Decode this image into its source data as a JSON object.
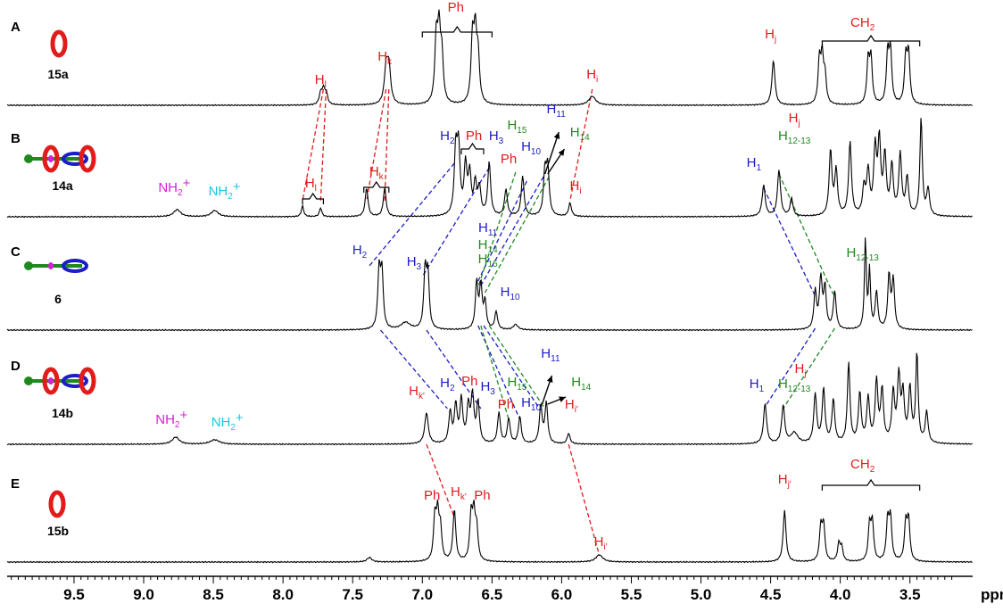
{
  "chart_data": {
    "type": "line",
    "xlabel": "ppm",
    "xlim": [
      9.98,
      3.05
    ],
    "x_reversed": true,
    "x_ticks": [
      "9.5",
      "9.0",
      "8.5",
      "8.0",
      "7.5",
      "7.0",
      "6.5",
      "6.0",
      "5.5",
      "5.0",
      "4.5",
      "4.0",
      "3.5"
    ],
    "palette": {
      "red": "#e21b1b",
      "blue": "#1c1cc8",
      "green": "#1e8a1e",
      "magenta": "#d420d4",
      "cyan": "#19c8e6",
      "black": "#000000"
    },
    "panels": [
      {
        "letter": "A",
        "compound": "15a",
        "peaks": [
          [
            7.73,
            0.12,
            0.012
          ],
          [
            7.71,
            0.16,
            0.012
          ],
          [
            7.69,
            0.12,
            0.012
          ],
          [
            7.26,
            0.38,
            0.015
          ],
          [
            7.24,
            0.4,
            0.015
          ],
          [
            6.9,
            0.7,
            0.012
          ],
          [
            6.88,
            0.75,
            0.012
          ],
          [
            6.86,
            0.5,
            0.012
          ],
          [
            6.64,
            0.7,
            0.012
          ],
          [
            6.62,
            0.72,
            0.012
          ],
          [
            6.6,
            0.5,
            0.012
          ],
          [
            5.78,
            0.1,
            0.03
          ],
          [
            4.48,
            0.5,
            0.013
          ],
          [
            4.15,
            0.48,
            0.011
          ],
          [
            4.13,
            0.5,
            0.011
          ],
          [
            4.11,
            0.3,
            0.011
          ],
          [
            3.8,
            0.48,
            0.011
          ],
          [
            3.78,
            0.5,
            0.011
          ],
          [
            3.66,
            0.55,
            0.011
          ],
          [
            3.64,
            0.58,
            0.011
          ],
          [
            3.53,
            0.52,
            0.011
          ],
          [
            3.51,
            0.55,
            0.011
          ]
        ],
        "labels": [
          {
            "text": "H",
            "sub": "l",
            "ppm": 7.73,
            "h": 0.24,
            "color": "red"
          },
          {
            "text": "H",
            "sub": "k",
            "ppm": 7.27,
            "h": 0.5,
            "color": "red"
          },
          {
            "text": "Ph",
            "sub": "",
            "ppm": 6.76,
            "h": 1.05,
            "color": "red"
          },
          {
            "text": "H",
            "sub": "i",
            "ppm": 5.78,
            "h": 0.3,
            "color": "red"
          },
          {
            "text": "H",
            "sub": "j",
            "ppm": 4.5,
            "h": 0.75,
            "color": "red"
          },
          {
            "text": "CH",
            "sub": "2",
            "ppm": 3.84,
            "h": 0.88,
            "color": "red"
          }
        ]
      },
      {
        "letter": "B",
        "compound": "14a",
        "peaks": [
          [
            8.76,
            0.08,
            0.03
          ],
          [
            8.49,
            0.07,
            0.03
          ],
          [
            7.86,
            0.12,
            0.01
          ],
          [
            7.73,
            0.1,
            0.01
          ],
          [
            7.4,
            0.32,
            0.012
          ],
          [
            7.27,
            0.32,
            0.012
          ],
          [
            6.76,
            0.72,
            0.012
          ],
          [
            6.74,
            0.72,
            0.012
          ],
          [
            6.69,
            0.55,
            0.012
          ],
          [
            6.66,
            0.45,
            0.012
          ],
          [
            6.62,
            0.35,
            0.012
          ],
          [
            6.59,
            0.3,
            0.012
          ],
          [
            6.52,
            0.6,
            0.012
          ],
          [
            6.4,
            0.3,
            0.012
          ],
          [
            6.28,
            0.45,
            0.012
          ],
          [
            6.12,
            0.48,
            0.012
          ],
          [
            6.1,
            0.52,
            0.012
          ],
          [
            5.94,
            0.15,
            0.012
          ],
          [
            4.55,
            0.35,
            0.013
          ],
          [
            4.44,
            0.52,
            0.013
          ],
          [
            4.35,
            0.2,
            0.012
          ],
          [
            4.07,
            0.72,
            0.012
          ],
          [
            4.03,
            0.5,
            0.012
          ],
          [
            3.93,
            0.82,
            0.012
          ],
          [
            3.83,
            0.3,
            0.012
          ],
          [
            3.8,
            0.48,
            0.012
          ],
          [
            3.75,
            0.72,
            0.012
          ],
          [
            3.72,
            0.8,
            0.012
          ],
          [
            3.68,
            0.65,
            0.012
          ],
          [
            3.63,
            0.55,
            0.012
          ],
          [
            3.57,
            0.68,
            0.012
          ],
          [
            3.52,
            0.42,
            0.012
          ],
          [
            3.42,
            1.1,
            0.01
          ],
          [
            3.37,
            0.3,
            0.012
          ]
        ],
        "labels": [
          {
            "text": "NH",
            "sub": "2",
            "sup": "+",
            "ppm": 8.78,
            "h": 0.28,
            "color": "magenta"
          },
          {
            "text": "NH",
            "sub": "2",
            "sup": "+",
            "ppm": 8.42,
            "h": 0.24,
            "color": "cyan"
          },
          {
            "text": "H",
            "sub": "l",
            "ppm": 7.8,
            "h": 0.33,
            "color": "red"
          },
          {
            "text": "H",
            "sub": "k",
            "ppm": 7.33,
            "h": 0.46,
            "color": "red"
          },
          {
            "text": "H",
            "sub": "2",
            "ppm": 6.82,
            "h": 0.86,
            "color": "blue"
          },
          {
            "text": "Ph",
            "sub": "",
            "ppm": 6.63,
            "h": 0.86,
            "color": "red"
          },
          {
            "text": "H",
            "sub": "3",
            "ppm": 6.47,
            "h": 0.86,
            "color": "blue"
          },
          {
            "text": "Ph",
            "sub": "",
            "ppm": 6.38,
            "h": 0.6,
            "color": "red"
          },
          {
            "text": "H",
            "sub": "15",
            "ppm": 6.32,
            "h": 0.98,
            "color": "green"
          },
          {
            "text": "H",
            "sub": "10",
            "ppm": 6.22,
            "h": 0.74,
            "color": "blue"
          },
          {
            "text": "H",
            "sub": "11",
            "ppm": 6.04,
            "h": 1.16,
            "color": "blue"
          },
          {
            "text": "H",
            "sub": "14",
            "ppm": 5.87,
            "h": 0.9,
            "color": "green"
          },
          {
            "text": "H",
            "sub": "i",
            "ppm": 5.9,
            "h": 0.3,
            "color": "red"
          },
          {
            "text": "H",
            "sub": "1",
            "ppm": 4.62,
            "h": 0.56,
            "color": "blue"
          },
          {
            "text": "H",
            "sub": "j",
            "ppm": 4.33,
            "h": 1.06,
            "color": "red"
          },
          {
            "text": "H",
            "sub": "12-13",
            "ppm": 4.33,
            "h": 0.86,
            "color": "green"
          }
        ]
      },
      {
        "letter": "C",
        "compound": "6",
        "peaks": [
          [
            7.31,
            0.65,
            0.011
          ],
          [
            7.29,
            0.62,
            0.011
          ],
          [
            7.12,
            0.08,
            0.04
          ],
          [
            6.98,
            0.65,
            0.011
          ],
          [
            6.96,
            0.6,
            0.011
          ],
          [
            6.61,
            0.52,
            0.011
          ],
          [
            6.58,
            0.48,
            0.011
          ],
          [
            6.55,
            0.3,
            0.011
          ],
          [
            6.47,
            0.2,
            0.012
          ],
          [
            6.33,
            0.06,
            0.02
          ],
          [
            4.18,
            0.42,
            0.011
          ],
          [
            4.14,
            0.56,
            0.012
          ],
          [
            4.11,
            0.45,
            0.011
          ],
          [
            4.04,
            0.42,
            0.012
          ],
          [
            3.82,
            1.0,
            0.008
          ],
          [
            3.79,
            0.65,
            0.008
          ],
          [
            3.74,
            0.42,
            0.011
          ],
          [
            3.65,
            0.6,
            0.011
          ],
          [
            3.62,
            0.55,
            0.011
          ]
        ],
        "labels": [
          {
            "text": "H",
            "sub": "2",
            "ppm": 7.45,
            "h": 0.85,
            "color": "blue"
          },
          {
            "text": "H",
            "sub": "3",
            "ppm": 7.06,
            "h": 0.72,
            "color": "blue"
          },
          {
            "text": "H",
            "sub": "11",
            "ppm": 6.53,
            "h": 1.1,
            "color": "blue"
          },
          {
            "text": "H",
            "sub": "14",
            "ppm": 6.53,
            "h": 0.91,
            "color": "green"
          },
          {
            "text": "H",
            "sub": "15",
            "ppm": 6.53,
            "h": 0.75,
            "color": "green"
          },
          {
            "text": "H",
            "sub": "10",
            "ppm": 6.37,
            "h": 0.38,
            "color": "blue"
          },
          {
            "text": "H",
            "sub": "12-13",
            "ppm": 3.84,
            "h": 0.82,
            "color": "green"
          }
        ]
      },
      {
        "letter": "D",
        "compound": "14b",
        "peaks": [
          [
            8.77,
            0.08,
            0.03
          ],
          [
            8.49,
            0.05,
            0.04
          ],
          [
            6.97,
            0.35,
            0.015
          ],
          [
            6.8,
            0.35,
            0.012
          ],
          [
            6.76,
            0.42,
            0.012
          ],
          [
            6.72,
            0.48,
            0.012
          ],
          [
            6.67,
            0.4,
            0.012
          ],
          [
            6.64,
            0.52,
            0.012
          ],
          [
            6.6,
            0.45,
            0.012
          ],
          [
            6.45,
            0.35,
            0.012
          ],
          [
            6.38,
            0.28,
            0.012
          ],
          [
            6.3,
            0.3,
            0.012
          ],
          [
            6.15,
            0.42,
            0.012
          ],
          [
            6.11,
            0.45,
            0.012
          ],
          [
            5.95,
            0.12,
            0.012
          ],
          [
            4.54,
            0.45,
            0.013
          ],
          [
            4.41,
            0.42,
            0.013
          ],
          [
            4.33,
            0.12,
            0.03
          ],
          [
            4.18,
            0.55,
            0.012
          ],
          [
            4.12,
            0.6,
            0.012
          ],
          [
            4.05,
            0.48,
            0.012
          ],
          [
            3.94,
            0.9,
            0.011
          ],
          [
            3.86,
            0.55,
            0.012
          ],
          [
            3.8,
            0.5,
            0.012
          ],
          [
            3.74,
            0.68,
            0.012
          ],
          [
            3.7,
            0.58,
            0.012
          ],
          [
            3.62,
            0.55,
            0.012
          ],
          [
            3.58,
            0.72,
            0.012
          ],
          [
            3.55,
            0.52,
            0.012
          ],
          [
            3.5,
            0.6,
            0.012
          ],
          [
            3.45,
            1.0,
            0.01
          ],
          [
            3.38,
            0.35,
            0.012
          ]
        ],
        "labels": [
          {
            "text": "NH",
            "sub": "2",
            "sup": "+",
            "ppm": 8.8,
            "h": 0.23,
            "color": "magenta"
          },
          {
            "text": "NH",
            "sub": "2",
            "sup": "+",
            "ppm": 8.4,
            "h": 0.2,
            "color": "cyan"
          },
          {
            "text": "H",
            "sub": "k'",
            "ppm": 7.04,
            "h": 0.55,
            "color": "red"
          },
          {
            "text": "H",
            "sub": "2",
            "ppm": 6.82,
            "h": 0.64,
            "color": "blue"
          },
          {
            "text": "Ph",
            "sub": "",
            "ppm": 6.66,
            "h": 0.66,
            "color": "red"
          },
          {
            "text": "H",
            "sub": "3",
            "ppm": 6.53,
            "h": 0.6,
            "color": "blue"
          },
          {
            "text": "Ph",
            "sub": "",
            "ppm": 6.4,
            "h": 0.4,
            "color": "red"
          },
          {
            "text": "H",
            "sub": "15",
            "ppm": 6.32,
            "h": 0.65,
            "color": "green"
          },
          {
            "text": "H",
            "sub": "10",
            "ppm": 6.22,
            "h": 0.42,
            "color": "blue"
          },
          {
            "text": "H",
            "sub": "11",
            "ppm": 6.08,
            "h": 0.97,
            "color": "blue"
          },
          {
            "text": "H",
            "sub": "14",
            "ppm": 5.86,
            "h": 0.65,
            "color": "green"
          },
          {
            "text": "H",
            "sub": "i'",
            "ppm": 5.93,
            "h": 0.4,
            "color": "red"
          },
          {
            "text": "H",
            "sub": "1",
            "ppm": 4.6,
            "h": 0.63,
            "color": "blue"
          },
          {
            "text": "H",
            "sub": "j'",
            "ppm": 4.28,
            "h": 0.8,
            "color": "red"
          },
          {
            "text": "H",
            "sub": "12-13",
            "ppm": 4.33,
            "h": 0.63,
            "color": "green"
          }
        ]
      },
      {
        "letter": "E",
        "compound": "15b",
        "peaks": [
          [
            7.38,
            0.05,
            0.02
          ],
          [
            6.91,
            0.48,
            0.011
          ],
          [
            6.89,
            0.5,
            0.011
          ],
          [
            6.87,
            0.35,
            0.011
          ],
          [
            6.77,
            0.58,
            0.012
          ],
          [
            6.65,
            0.5,
            0.011
          ],
          [
            6.63,
            0.5,
            0.011
          ],
          [
            6.61,
            0.35,
            0.011
          ],
          [
            5.73,
            0.08,
            0.03
          ],
          [
            4.4,
            0.58,
            0.012
          ],
          [
            4.14,
            0.38,
            0.011
          ],
          [
            4.12,
            0.4,
            0.011
          ],
          [
            4.01,
            0.2,
            0.011
          ],
          [
            3.99,
            0.15,
            0.011
          ],
          [
            3.79,
            0.4,
            0.011
          ],
          [
            3.77,
            0.42,
            0.011
          ],
          [
            3.66,
            0.45,
            0.011
          ],
          [
            3.64,
            0.47,
            0.011
          ],
          [
            3.53,
            0.42,
            0.011
          ],
          [
            3.51,
            0.45,
            0.011
          ]
        ],
        "labels": [
          {
            "text": "Ph",
            "sub": "",
            "ppm": 6.93,
            "h": 0.7,
            "color": "red"
          },
          {
            "text": "H",
            "sub": "k'",
            "ppm": 6.74,
            "h": 0.74,
            "color": "red"
          },
          {
            "text": "Ph",
            "sub": "",
            "ppm": 6.57,
            "h": 0.7,
            "color": "red"
          },
          {
            "text": "H",
            "sub": "i'",
            "ppm": 5.72,
            "h": 0.18,
            "color": "red"
          },
          {
            "text": "H",
            "sub": "j'",
            "ppm": 4.4,
            "h": 0.88,
            "color": "red"
          },
          {
            "text": "CH",
            "sub": "2",
            "ppm": 3.84,
            "h": 1.05,
            "color": "red"
          }
        ]
      }
    ]
  }
}
